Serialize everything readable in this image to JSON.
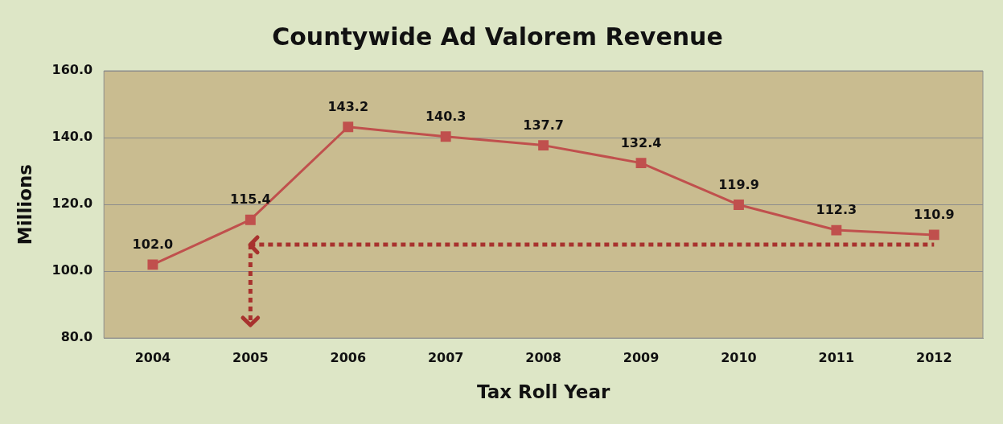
{
  "chart_data": {
    "type": "line",
    "title": "Countywide Ad Valorem Revenue",
    "xlabel": "Tax Roll Year",
    "ylabel": "Millions",
    "categories": [
      "2004",
      "2005",
      "2006",
      "2007",
      "2008",
      "2009",
      "2010",
      "2011",
      "2012"
    ],
    "series": [
      {
        "color": "#c0504d",
        "values": [
          102.0,
          115.4,
          143.2,
          140.3,
          137.7,
          132.4,
          119.9,
          112.3,
          110.9
        ],
        "value_labels": [
          "102.0",
          "115.4",
          "143.2",
          "140.3",
          "137.7",
          "132.4",
          "119.9",
          "112.3",
          "110.9"
        ],
        "marker": "square",
        "line_style": "solid"
      },
      {
        "color": "#a8322e",
        "values": [
          null,
          108,
          null,
          null,
          null,
          null,
          null,
          null,
          108
        ],
        "errors": [
          null,
          [
            84,
            108
          ],
          null,
          null,
          null,
          null,
          null,
          null,
          null
        ],
        "line_style": "dotted"
      }
    ],
    "ylim": [
      80,
      160
    ],
    "yticks": [
      {
        "value": 80,
        "label": "80.0"
      },
      {
        "value": 100,
        "label": "100.0"
      },
      {
        "value": 120,
        "label": "120.0"
      },
      {
        "value": 140,
        "label": "140.0"
      },
      {
        "value": 160,
        "label": "160.0"
      }
    ],
    "grid": "y",
    "legend": false
  }
}
